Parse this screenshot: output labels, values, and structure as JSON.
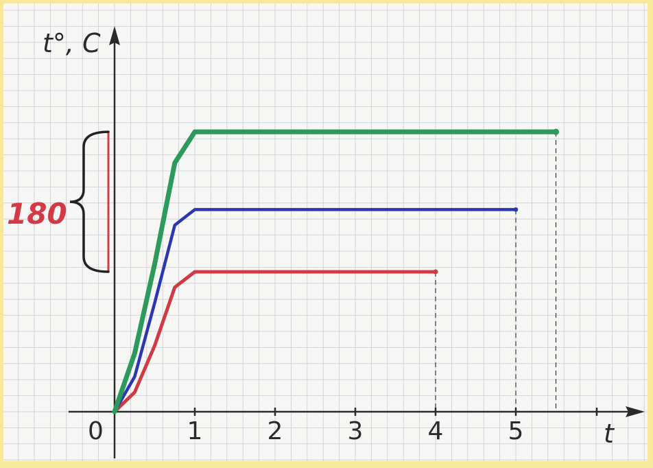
{
  "chart_data": {
    "type": "line",
    "ylabel": "t°, C",
    "xlabel": "t",
    "origin_label": "0",
    "x_ticks": [
      {
        "value": 1,
        "label": "1"
      },
      {
        "value": 2,
        "label": "2"
      },
      {
        "value": 3,
        "label": "3"
      },
      {
        "value": 4,
        "label": "4"
      },
      {
        "value": 5,
        "label": "5"
      }
    ],
    "xlim": [
      0,
      6.5
    ],
    "bracket_label": "180",
    "bracket_range": [
      180,
      360
    ],
    "ylim": [
      0,
      480
    ],
    "grid": true,
    "series": [
      {
        "color": "#cf3b44",
        "x": [
          0,
          0.25,
          0.5,
          0.75,
          1,
          4
        ],
        "y": [
          0,
          25,
          85,
          160,
          180,
          180
        ]
      },
      {
        "color": "#2b36b0",
        "x": [
          0,
          0.25,
          0.5,
          0.75,
          1,
          5
        ],
        "y": [
          0,
          45,
          140,
          240,
          260,
          260
        ]
      },
      {
        "color": "#2b9a5c",
        "x": [
          0,
          0.25,
          0.5,
          0.75,
          1,
          5.5
        ],
        "y": [
          0,
          75,
          190,
          320,
          360,
          360
        ]
      }
    ]
  },
  "colors": {
    "paper": "#f6f6f4",
    "grid": "#c9ccd6",
    "axis": "#2a2a2a",
    "frame": "#f6e79a",
    "bracket_label": "#d43a45",
    "bracket_line": "#d43a45"
  }
}
